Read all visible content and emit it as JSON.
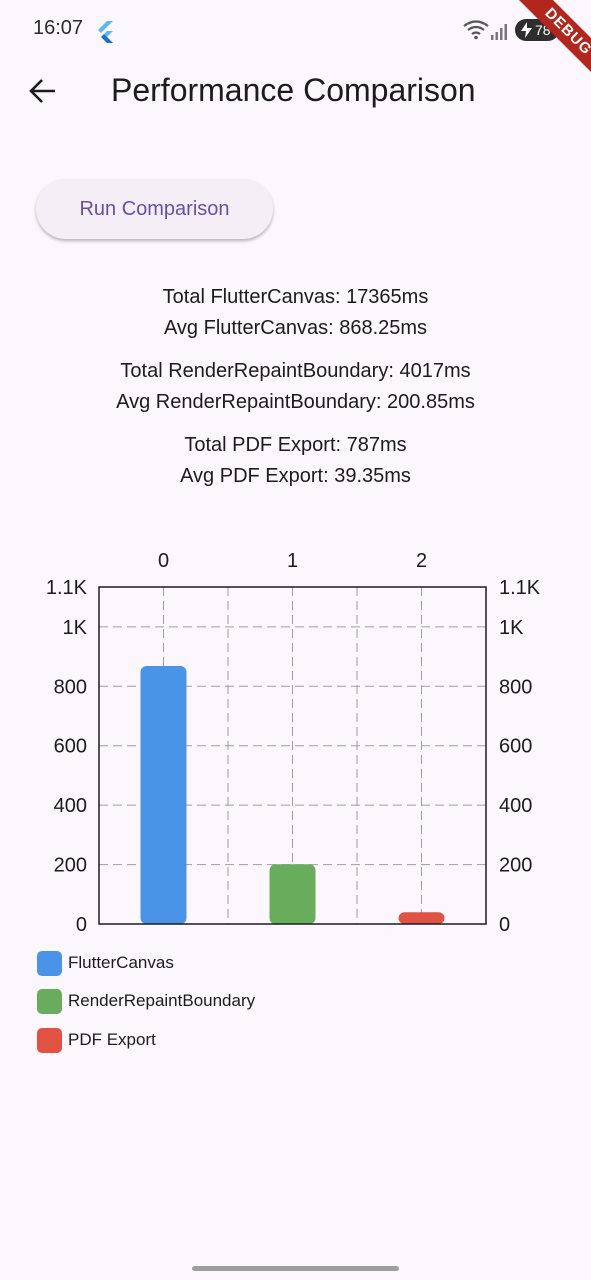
{
  "status_bar": {
    "time": "16:07",
    "battery": "78",
    "icons": [
      "flutter-icon",
      "wifi-icon",
      "signal-icon",
      "battery-icon"
    ]
  },
  "debug_banner": "DEBUG",
  "app_bar": {
    "title": "Performance Comparison",
    "back_icon": "arrow-left-icon"
  },
  "run_button_label": "Run Comparison",
  "stats": [
    "Total FlutterCanvas: 17365ms",
    "Avg FlutterCanvas: 868.25ms",
    "Total RenderRepaintBoundary: 4017ms",
    "Avg RenderRepaintBoundary: 200.85ms",
    "Total PDF Export: 787ms",
    "Avg PDF Export: 39.35ms"
  ],
  "colors": {
    "accent": "#6750a4",
    "flutter_canvas": "#4a94e8",
    "render_repaint_boundary": "#67ad5b",
    "pdf_export": "#e05242"
  },
  "chart_data": {
    "type": "bar",
    "categories": [
      "0",
      "1",
      "2"
    ],
    "values": [
      868.25,
      200.85,
      39.35
    ],
    "bar_colors": [
      "#4a94e8",
      "#67ad5b",
      "#e05242"
    ],
    "ylim": [
      0,
      1134
    ],
    "y_ticks": [
      0,
      200,
      400,
      600,
      800,
      1000,
      1134
    ],
    "y_tick_labels": [
      "0",
      "200",
      "400",
      "600",
      "800",
      "1K",
      "1.1K"
    ],
    "grid": true,
    "legend_position": "bottom-left",
    "legend": [
      "FlutterCanvas",
      "RenderRepaintBoundary",
      "PDF Export"
    ]
  }
}
